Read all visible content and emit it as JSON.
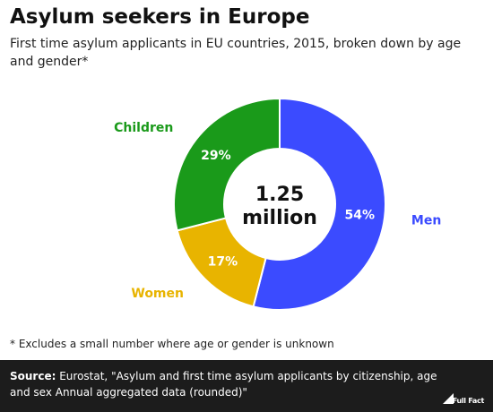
{
  "header": {
    "title": "Asylum seekers in Europe",
    "subtitle": "First time asylum applicants in EU countries, 2015, broken down by age and gender*"
  },
  "chart_data": {
    "type": "pie",
    "variant": "donut",
    "center_label_line1": "1.25",
    "center_label_line2": "million",
    "slices": [
      {
        "name": "Men",
        "value": 54,
        "label": "54%",
        "color": "#3b4bff"
      },
      {
        "name": "Women",
        "value": 17,
        "label": "17%",
        "color": "#e8b400"
      },
      {
        "name": "Children",
        "value": 29,
        "label": "29%",
        "color": "#1a9a1a"
      }
    ]
  },
  "footnote": "* Excludes a small number where age or gender is unknown",
  "source": {
    "label": "Source:",
    "text": " Eurostat, \"Asylum and first time asylum applicants by citizenship, age and sex Annual aggregated data (rounded)\""
  },
  "logo": {
    "text": "Full Fact"
  }
}
